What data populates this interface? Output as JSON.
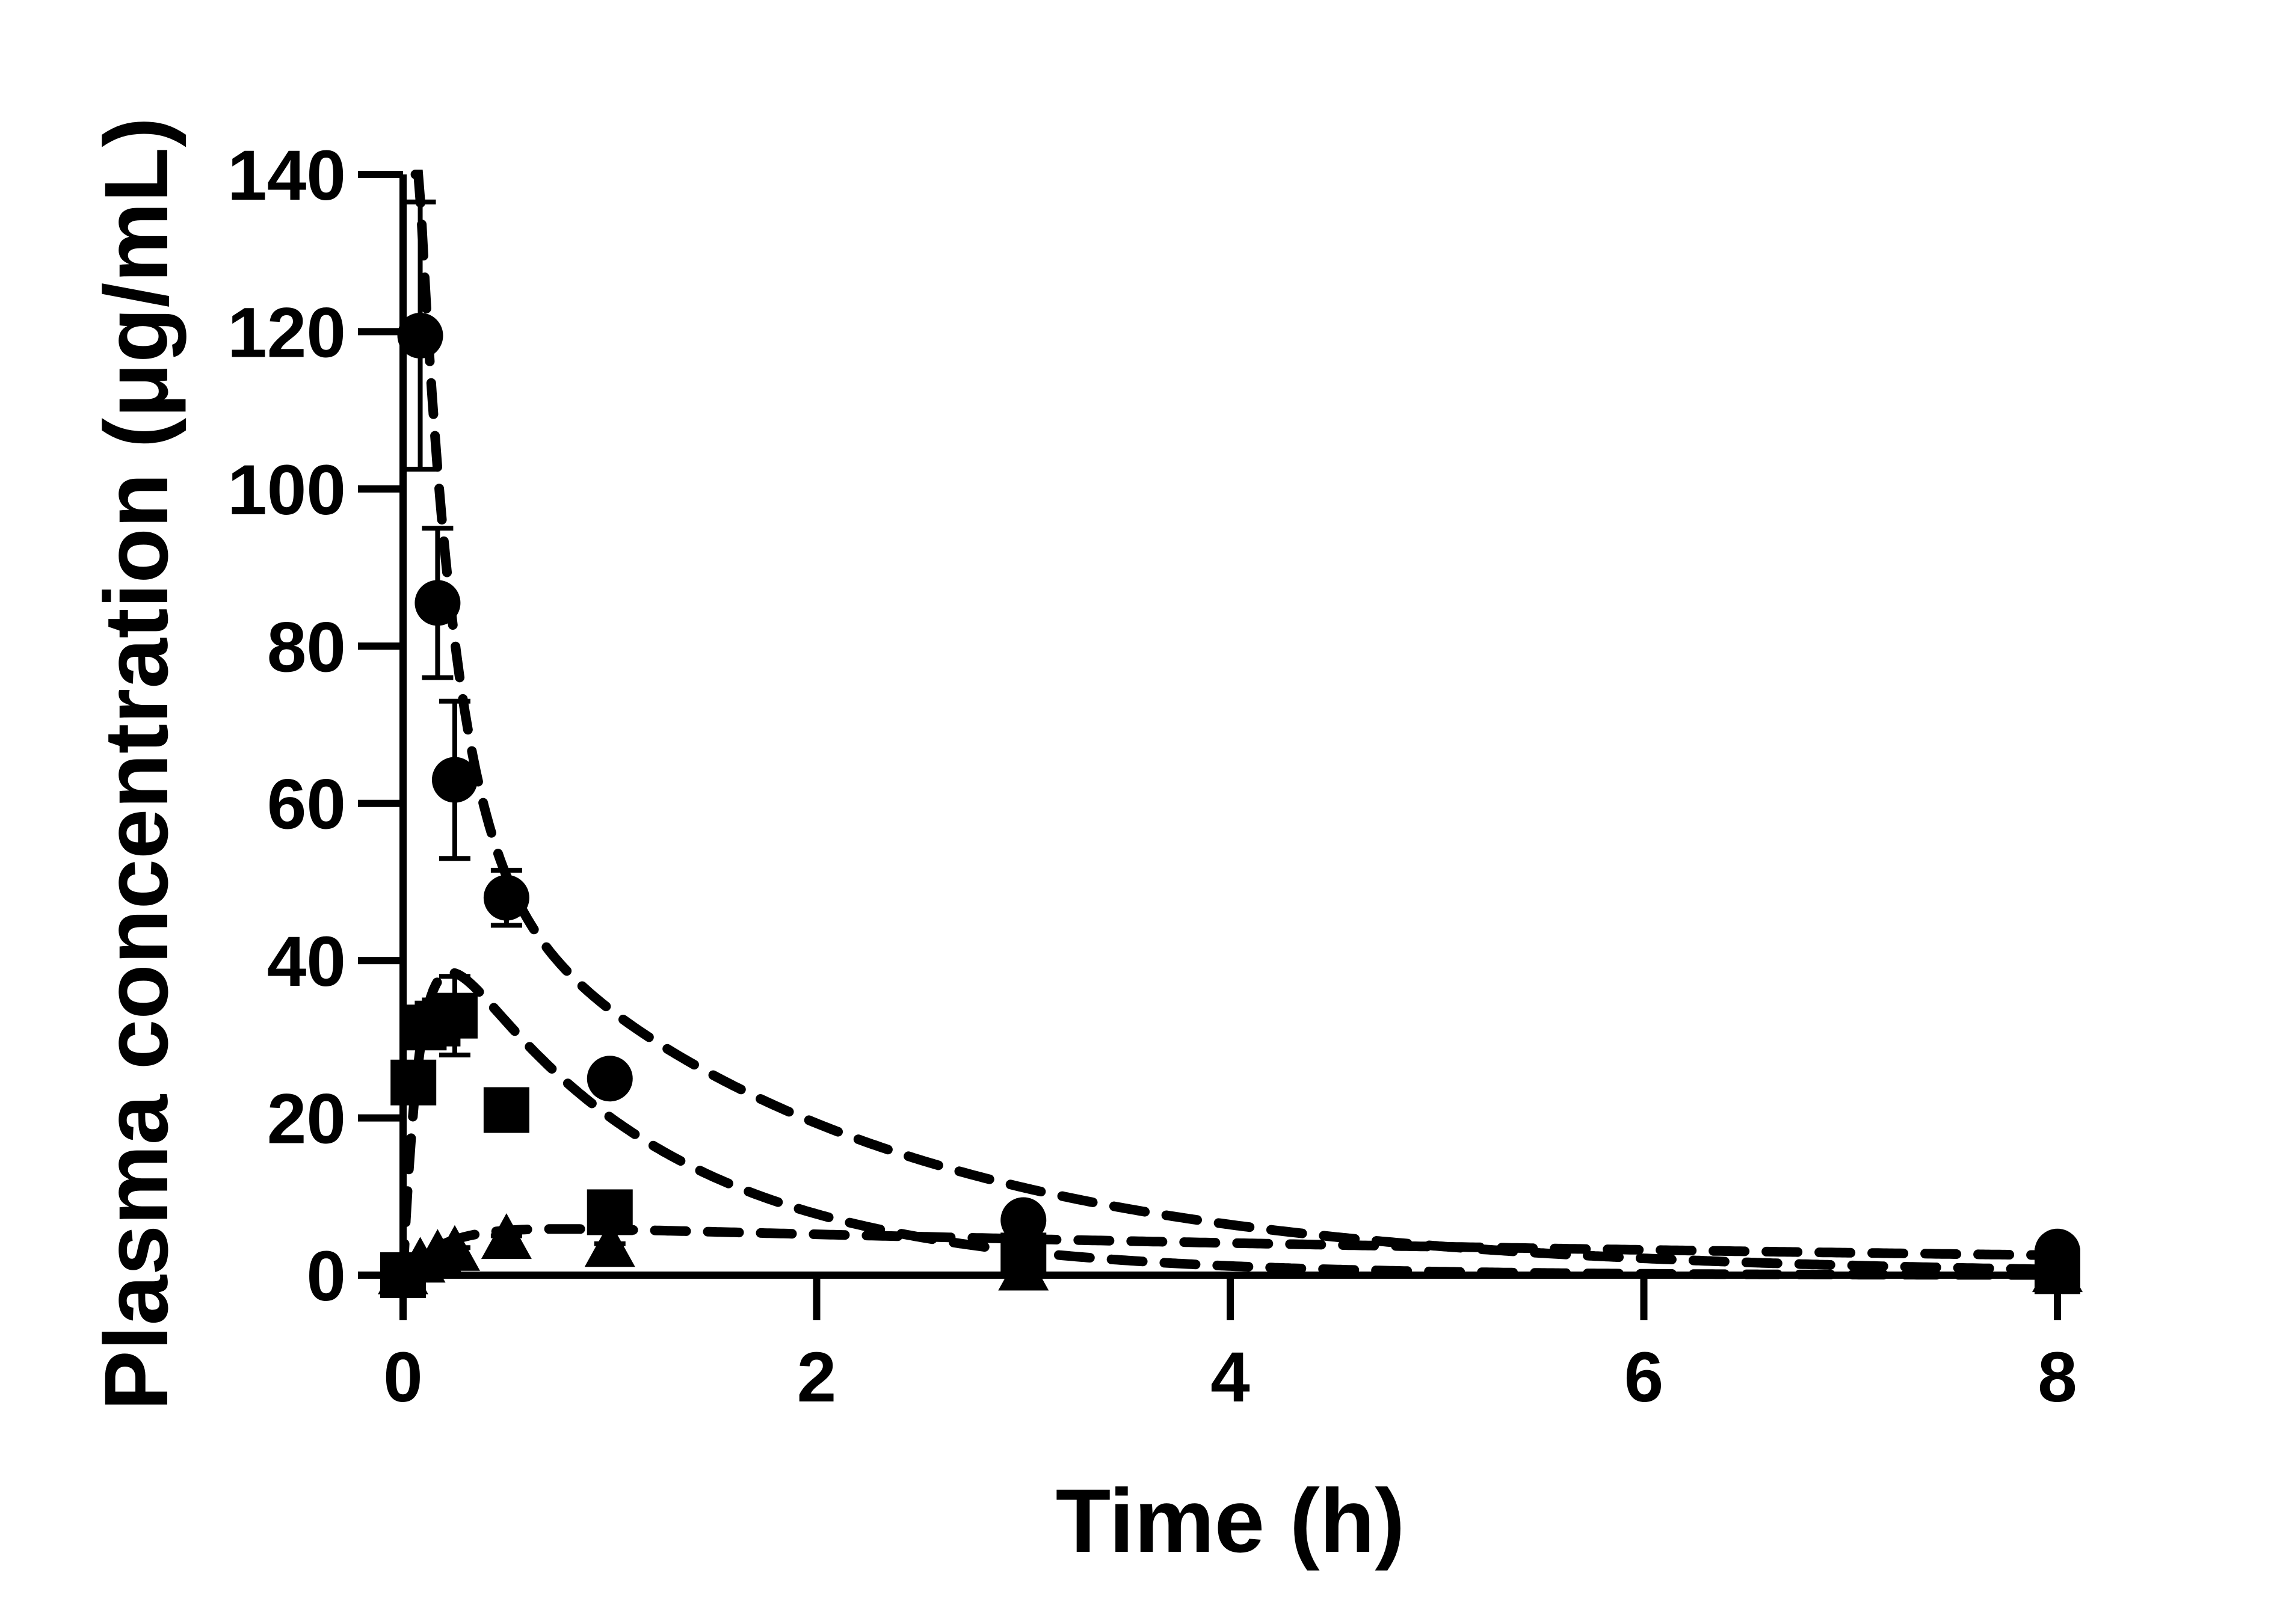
{
  "chart_data": {
    "type": "scatter",
    "title": "",
    "xlabel": "Time (h)",
    "ylabel": "Plasma concentration (μg/mL)",
    "xlim": [
      0,
      8
    ],
    "ylim": [
      0,
      140
    ],
    "x_ticks": [
      0,
      2,
      4,
      6,
      8
    ],
    "x_tick_labels": [
      "0",
      "2",
      "4",
      "6",
      "8"
    ],
    "y_ticks": [
      0,
      20,
      40,
      60,
      80,
      100,
      120,
      140
    ],
    "y_tick_labels": [
      "0",
      "20",
      "40",
      "60",
      "80",
      "100",
      "120",
      "140"
    ],
    "grid": false,
    "legend": "none",
    "colors": {
      "marker": "#000000",
      "axis": "#000000",
      "background": "#ffffff"
    },
    "series": [
      {
        "marker": "circle",
        "points": [
          {
            "x": 0.083,
            "y": 119.5,
            "err": 17
          },
          {
            "x": 0.167,
            "y": 85.5,
            "err": 9.5
          },
          {
            "x": 0.25,
            "y": 63,
            "err": 10
          },
          {
            "x": 0.5,
            "y": 48,
            "err": 3.5
          },
          {
            "x": 1,
            "y": 25,
            "err": 1
          },
          {
            "x": 3,
            "y": 7,
            "err": 0.5
          },
          {
            "x": 8,
            "y": 3,
            "err": 0.3
          }
        ],
        "fit": {
          "type": "bi-exponential",
          "A": 135,
          "alpha": 6.0,
          "B": 58,
          "beta": 0.55
        }
      },
      {
        "marker": "square",
        "points": [
          {
            "x": 0,
            "y": 0,
            "err": 0
          },
          {
            "x": 0.05,
            "y": 24.5,
            "err": 2
          },
          {
            "x": 0.1,
            "y": 31.5,
            "err": 2
          },
          {
            "x": 0.167,
            "y": 32,
            "err": 3
          },
          {
            "x": 0.25,
            "y": 33,
            "err": 5
          },
          {
            "x": 0.5,
            "y": 21,
            "err": 1.5
          },
          {
            "x": 1,
            "y": 8,
            "err": 1
          },
          {
            "x": 3,
            "y": 2.5,
            "err": 0.3
          },
          {
            "x": 8,
            "y": 0.5,
            "err": 0.2
          }
        ],
        "fit": {
          "type": "absorption",
          "A": 52,
          "ke": 0.95,
          "ka": 12
        }
      },
      {
        "marker": "triangle",
        "points": [
          {
            "x": 0,
            "y": 0,
            "err": 0
          },
          {
            "x": 0.083,
            "y": 1.5,
            "err": 0.5
          },
          {
            "x": 0.167,
            "y": 2.5,
            "err": 0.5
          },
          {
            "x": 0.25,
            "y": 3,
            "err": 0.5
          },
          {
            "x": 0.5,
            "y": 4.5,
            "err": 0.5
          },
          {
            "x": 1,
            "y": 3.5,
            "err": 0.5
          },
          {
            "x": 3,
            "y": 0.5,
            "err": 0.2
          },
          {
            "x": 8,
            "y": 0.3,
            "err": 0.1
          }
        ],
        "fit": {
          "type": "absorption",
          "A": 6.6,
          "ke": 0.12,
          "ka": 5
        }
      }
    ]
  }
}
